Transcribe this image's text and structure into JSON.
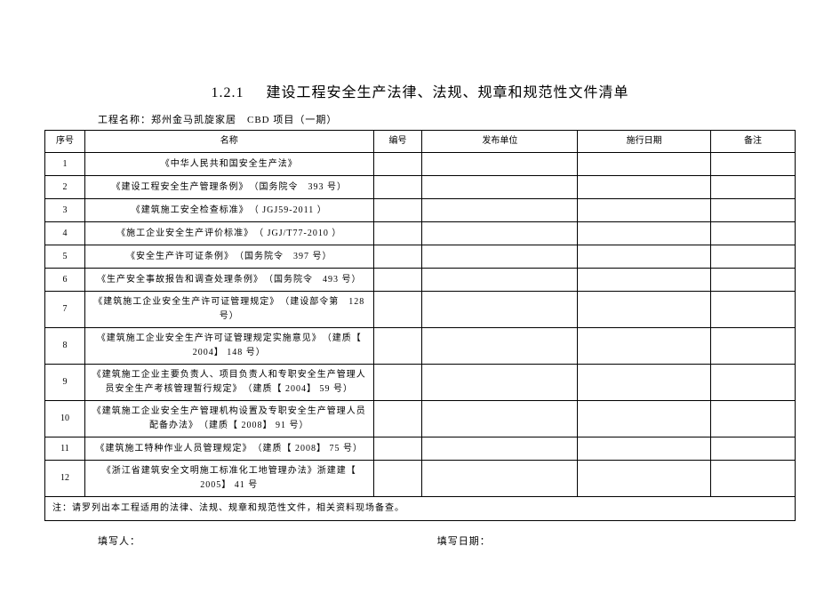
{
  "title": {
    "section": "1.2.1",
    "text": "建设工程安全生产法律、法规、规章和规范性文件清单"
  },
  "project": {
    "label": "工程名称：",
    "name": "郑州金马凯旋家居",
    "sub": "CBD 项目（一期）"
  },
  "headers": {
    "seq": "序号",
    "name": "名称",
    "num": "编号",
    "dept": "发布单位",
    "date": "施行日期",
    "remark": "备注"
  },
  "rows": [
    {
      "seq": "1",
      "name": "《中华人民共和国安全生产法》",
      "tall": false
    },
    {
      "seq": "2",
      "name": "《建设工程安全生产管理条例》　（国务院令　393 号）",
      "tall": false
    },
    {
      "seq": "3",
      "name": "《建筑施工安全检查标准》　（ JGJ59-2011 ）",
      "tall": false
    },
    {
      "seq": "4",
      "name": "《施工企业安全生产评价标准》　（ JGJ/T77-2010 ）",
      "tall": false
    },
    {
      "seq": "5",
      "name": "《安全生产许可证条例》　（国务院令　397 号）",
      "tall": false
    },
    {
      "seq": "6",
      "name": "《生产安全事故报告和调查处理条例》　（国务院令　493 号）",
      "tall": false
    },
    {
      "seq": "7",
      "name": "《建筑施工企业安全生产许可证管理规定》　（建设部令第　128号）",
      "tall": true
    },
    {
      "seq": "8",
      "name": "《建筑施工企业安全生产许可证管理规定实施意见》　（建质【 2004】 148 号）",
      "tall": true
    },
    {
      "seq": "9",
      "name": "《建筑施工企业主要负责人、项目负责人和专职安全生产管理人员安全生产考核管理暂行规定》　（建质【 2004】 59 号）",
      "tall": true
    },
    {
      "seq": "10",
      "name": "《建筑施工企业安全生产管理机构设置及专职安全生产管理人员配备办法》　（建质【 2008】 91 号）",
      "tall": true
    },
    {
      "seq": "11",
      "name": "《建筑施工特种作业人员管理规定》　（建质【 2008】 75 号）",
      "tall": false
    },
    {
      "seq": "12",
      "name": "《浙江省建筑安全文明施工标准化工地管理办法》浙建建【 2005】 41 号",
      "tall": true
    }
  ],
  "note": "注：请罗列出本工程适用的法律、法规、规章和规范性文件，相关资料现场备查。",
  "footer": {
    "filler": "填写人：",
    "date": "填写日期："
  }
}
